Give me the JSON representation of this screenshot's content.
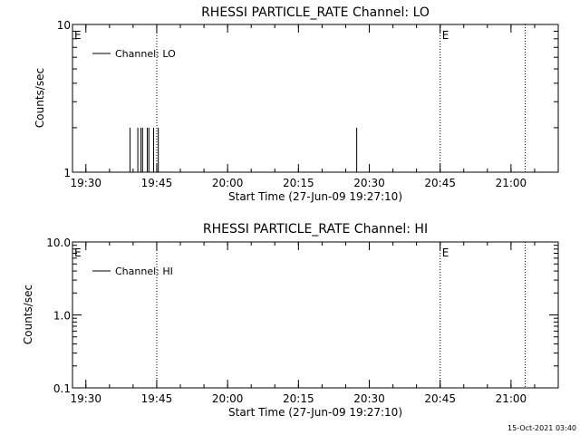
{
  "chart_data": [
    {
      "type": "line",
      "title": "RHESSI PARTICLE_RATE Channel: LO",
      "xlabel": "Start Time (27-Jun-09 19:27:10)",
      "ylabel": "Counts/sec",
      "yscale": "log",
      "ylim": [
        1,
        10
      ],
      "xlim": [
        "19:27:10",
        "21:10:00"
      ],
      "ytick_labels": [
        "1",
        "10"
      ],
      "ytick_values": [
        1,
        10
      ],
      "xtick_labels": [
        "19:30",
        "19:45",
        "20:00",
        "20:15",
        "20:30",
        "20:45",
        "21:00"
      ],
      "legend": {
        "position": "top-left",
        "entries": [
          "Channel: LO"
        ]
      },
      "annotations": [
        {
          "text": "E",
          "time": "19:27:10"
        },
        {
          "text": "E",
          "time": "20:45:00"
        }
      ],
      "vertical_lines": [
        "19:45:00",
        "20:45:00",
        "21:03:00"
      ],
      "series": [
        {
          "name": "Channel: LO",
          "x": [
            "19:39:00",
            "19:39:20",
            "19:39:40",
            "19:40:00",
            "19:40:40",
            "19:41:00",
            "19:41:20",
            "19:41:40",
            "19:42:00",
            "19:42:20",
            "19:42:40",
            "19:43:00",
            "19:43:20",
            "19:43:40",
            "19:44:00",
            "19:44:20",
            "19:44:40",
            "19:45:00",
            "19:45:20",
            "19:45:40",
            "20:27:00",
            "20:27:20",
            "20:27:40"
          ],
          "values": [
            1,
            2,
            1,
            1,
            1,
            2,
            1,
            2,
            2,
            1,
            1,
            2,
            2,
            1,
            1,
            2,
            1,
            1,
            2,
            1,
            1,
            2,
            1
          ]
        }
      ]
    },
    {
      "type": "line",
      "title": "RHESSI PARTICLE_RATE Channel: HI",
      "xlabel": "Start Time (27-Jun-09 19:27:10)",
      "ylabel": "Counts/sec",
      "yscale": "log",
      "ylim": [
        0.1,
        10
      ],
      "xlim": [
        "19:27:10",
        "21:10:00"
      ],
      "ytick_labels": [
        "0.1",
        "1.0",
        "10.0"
      ],
      "ytick_values": [
        0.1,
        1,
        10
      ],
      "xtick_labels": [
        "19:30",
        "19:45",
        "20:00",
        "20:15",
        "20:30",
        "20:45",
        "21:00"
      ],
      "legend": {
        "position": "top-left",
        "entries": [
          "Channel: HI"
        ]
      },
      "annotations": [
        {
          "text": "E",
          "time": "19:27:10"
        },
        {
          "text": "E",
          "time": "20:45:00"
        }
      ],
      "vertical_lines": [
        "19:45:00",
        "20:45:00",
        "21:03:00"
      ],
      "series": [
        {
          "name": "Channel: HI",
          "x": [],
          "values": []
        }
      ]
    }
  ],
  "footer": {
    "timestamp": "15-Oct-2021 03:40"
  }
}
